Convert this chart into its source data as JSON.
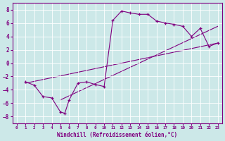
{
  "title": "",
  "xlabel": "Windchill (Refroidissement éolien,°C)",
  "ylabel": "",
  "bg_color": "#cce8e8",
  "line_color": "#800080",
  "marker": "+",
  "line1_x": [
    1,
    2,
    3,
    4,
    5,
    5.5,
    6,
    7,
    8,
    9,
    10,
    11,
    12,
    13,
    14,
    15,
    16,
    17,
    18,
    19,
    20,
    21,
    22,
    23
  ],
  "line1_y": [
    -2.8,
    -3.3,
    -5.0,
    -5.2,
    -7.3,
    -7.5,
    -5.5,
    -3.0,
    -2.8,
    -3.2,
    -3.5,
    6.4,
    7.8,
    7.5,
    7.3,
    7.3,
    6.3,
    6.0,
    5.8,
    5.5,
    4.0,
    5.2,
    2.5,
    3.0
  ],
  "line2_x": [
    1,
    23
  ],
  "line2_y": [
    -3.0,
    3.0
  ],
  "line3_x": [
    5,
    23
  ],
  "line3_y": [
    -5.5,
    5.5
  ],
  "xlim": [
    -0.5,
    23.5
  ],
  "ylim": [
    -9,
    9
  ],
  "yticks": [
    -8,
    -6,
    -4,
    -2,
    0,
    2,
    4,
    6,
    8
  ],
  "xticks": [
    0,
    1,
    2,
    3,
    4,
    5,
    6,
    7,
    8,
    9,
    10,
    11,
    12,
    13,
    14,
    15,
    16,
    17,
    18,
    19,
    20,
    21,
    22,
    23
  ]
}
